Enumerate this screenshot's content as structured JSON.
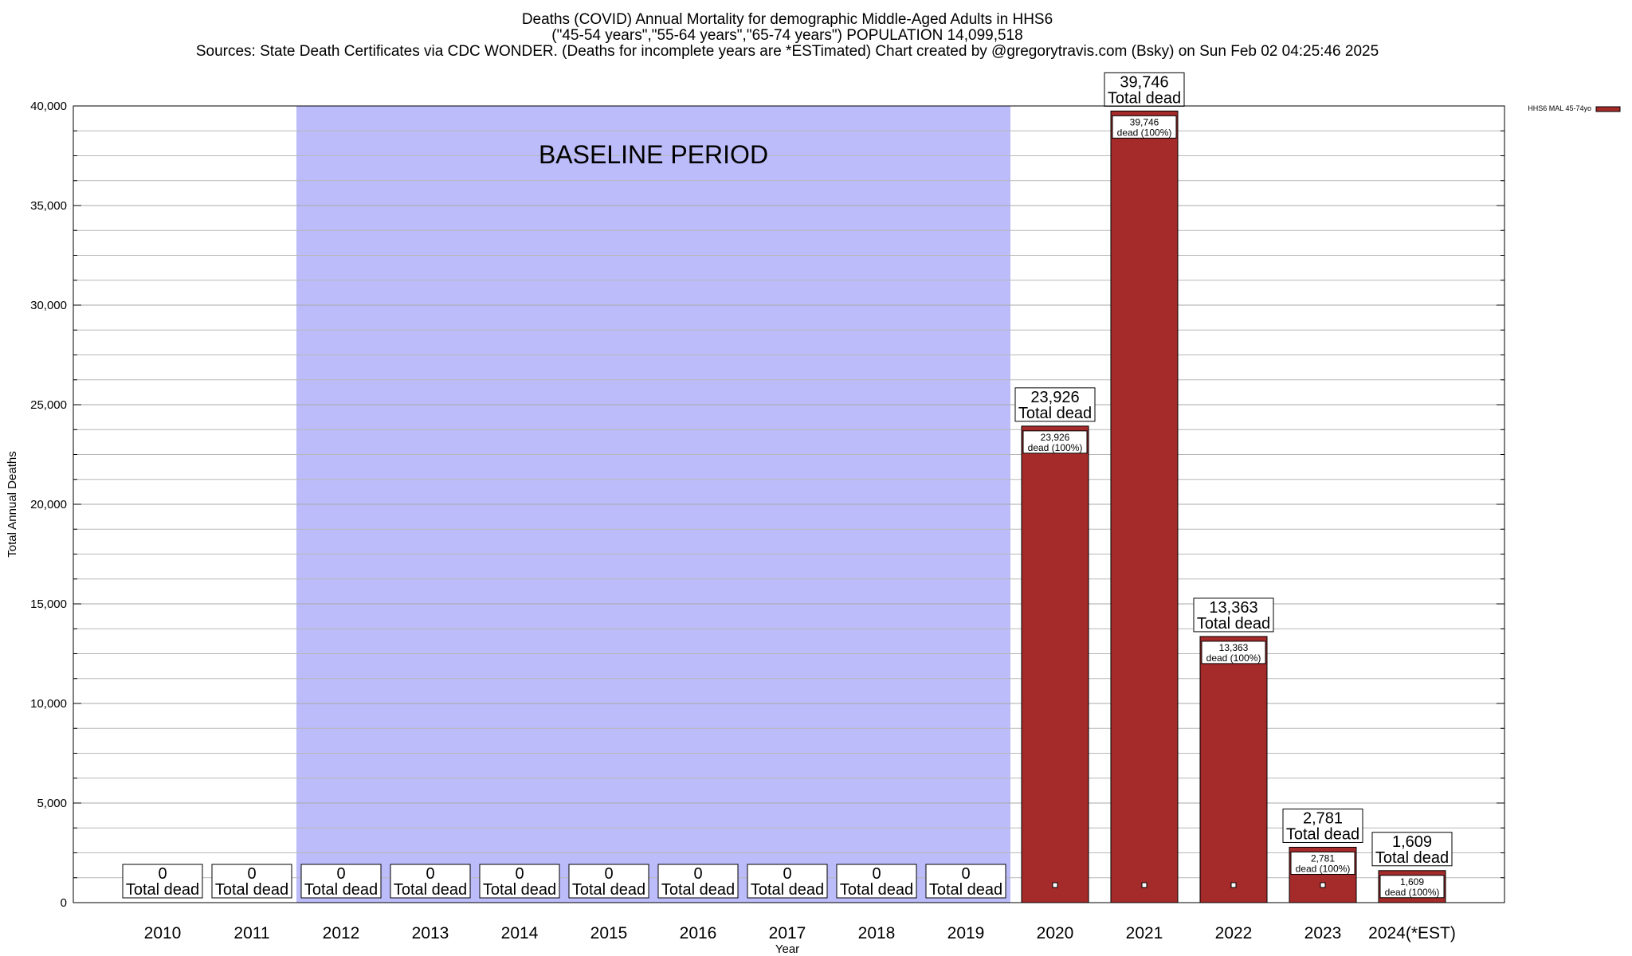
{
  "chart_data": {
    "type": "bar",
    "title_lines": [
      "Deaths (COVID) Annual Mortality for demographic Middle-Aged Adults in HHS6",
      "(\"45-54 years\",\"55-64 years\",\"65-74 years\") POPULATION 14,099,518",
      "Sources: State Death Certificates via CDC WONDER. (Deaths for incomplete years are *ESTimated)              Chart created by @gregorytravis.com (Bsky) on Sun Feb 02 04:25:46 2025"
    ],
    "xlabel": "Year",
    "ylabel": "Total Annual Deaths",
    "ylim": [
      0,
      40000
    ],
    "y_ticks": [
      "0",
      "5,000",
      "10,000",
      "15,000",
      "20,000",
      "25,000",
      "30,000",
      "35,000",
      "40,000"
    ],
    "y_tick_values": [
      0,
      5000,
      10000,
      15000,
      20000,
      25000,
      30000,
      35000,
      40000
    ],
    "categories": [
      "2010",
      "2011",
      "2012",
      "2013",
      "2014",
      "2015",
      "2016",
      "2017",
      "2018",
      "2019",
      "2020",
      "2021",
      "2022",
      "2023",
      "2024(*EST)"
    ],
    "series": [
      {
        "name": "HHS6 MAL 45-74yo",
        "color": "#a52a2a",
        "values": [
          0,
          0,
          0,
          0,
          0,
          0,
          0,
          0,
          0,
          0,
          23926,
          39746,
          13363,
          2781,
          1609
        ]
      }
    ],
    "total_labels": [
      {
        "value": "0",
        "caption": "Total dead"
      },
      {
        "value": "0",
        "caption": "Total dead"
      },
      {
        "value": "0",
        "caption": "Total dead"
      },
      {
        "value": "0",
        "caption": "Total dead"
      },
      {
        "value": "0",
        "caption": "Total dead"
      },
      {
        "value": "0",
        "caption": "Total dead"
      },
      {
        "value": "0",
        "caption": "Total dead"
      },
      {
        "value": "0",
        "caption": "Total dead"
      },
      {
        "value": "0",
        "caption": "Total dead"
      },
      {
        "value": "0",
        "caption": "Total dead"
      },
      {
        "value": "23,926",
        "caption": "Total dead"
      },
      {
        "value": "39,746",
        "caption": "Total dead"
      },
      {
        "value": "13,363",
        "caption": "Total dead"
      },
      {
        "value": "2,781",
        "caption": "Total dead"
      },
      {
        "value": "1,609",
        "caption": "Total dead"
      }
    ],
    "segment_labels": [
      null,
      null,
      null,
      null,
      null,
      null,
      null,
      null,
      null,
      null,
      {
        "value": "23,926",
        "caption": "dead (100%)"
      },
      {
        "value": "39,746",
        "caption": "dead (100%)"
      },
      {
        "value": "13,363",
        "caption": "dead (100%)"
      },
      {
        "value": "2,781",
        "caption": "dead (100%)"
      },
      {
        "value": "1,609",
        "caption": "dead (100%)"
      }
    ],
    "baseline_band": {
      "label": "BASELINE PERIOD",
      "from": "2012",
      "to": "2019",
      "color": "#bcbcfa"
    },
    "legend_position": "top-right",
    "grid": true
  }
}
